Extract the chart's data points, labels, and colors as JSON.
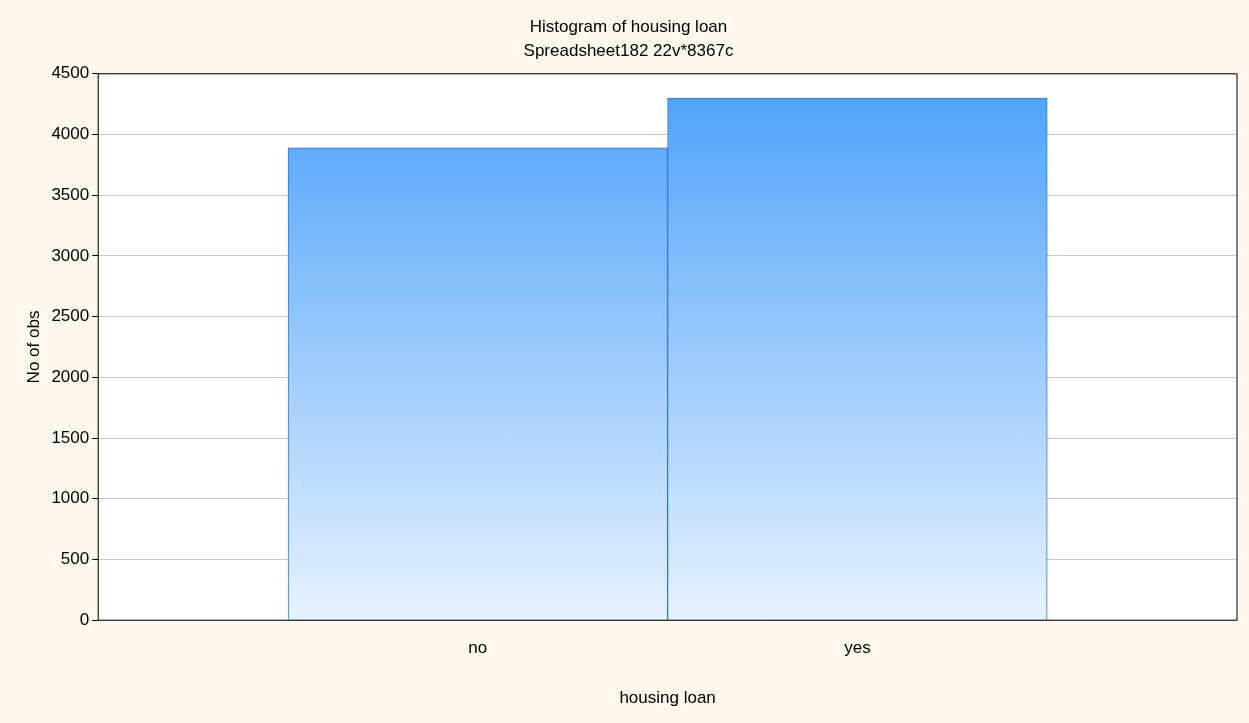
{
  "chart_data": {
    "type": "bar",
    "title": "Histogram of housing loan",
    "subtitle": "Spreadsheet182 22v*8367c",
    "xlabel": "housing loan",
    "ylabel": "No of obs",
    "categories": [
      "no",
      "yes"
    ],
    "values": [
      3890,
      4300
    ],
    "color": "#4aa0fa",
    "ylim": [
      0,
      4500
    ],
    "yticks": [
      0,
      500,
      1000,
      1500,
      2000,
      2500,
      3000,
      3500,
      4000,
      4500
    ],
    "grid": "y"
  }
}
